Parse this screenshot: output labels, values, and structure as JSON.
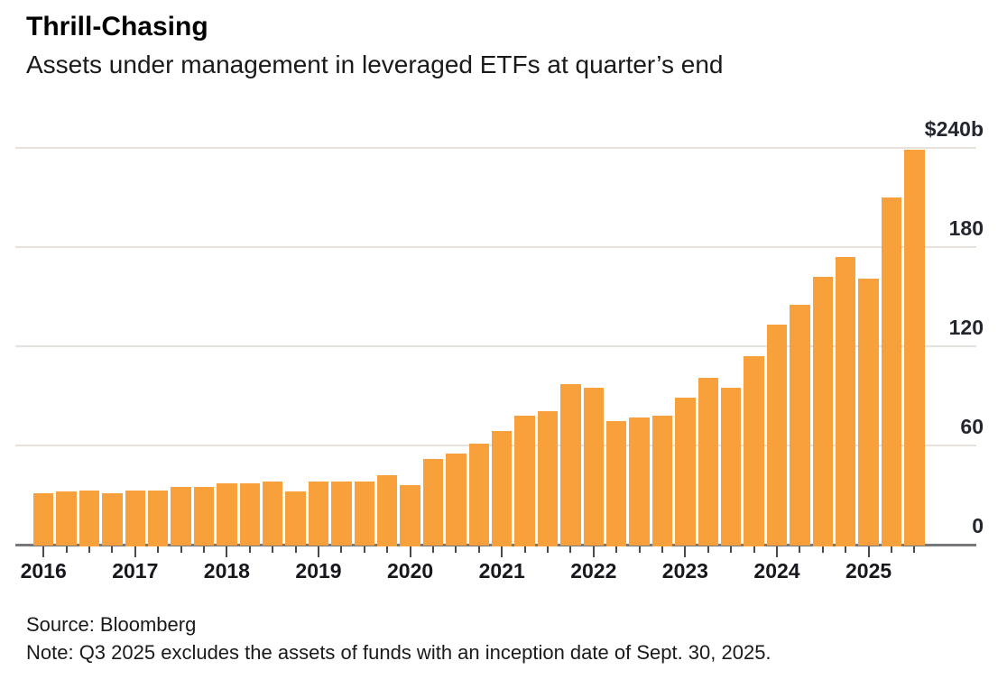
{
  "header": {
    "title": "Thrill-Chasing",
    "subtitle": "Assets under management in leveraged ETFs at quarter’s end"
  },
  "footer": {
    "source": "Source: Bloomberg",
    "note": "Note: Q3 2025 excludes the assets of funds with an inception date of Sept. 30, 2025."
  },
  "colors": {
    "bar": "#F8A13C",
    "gridline": "#E8E2DD",
    "axis_line": "#77787B",
    "tick": "#4A4A4C",
    "axis_label": "#23262E",
    "text": "#1A1A1A"
  },
  "chart_data": {
    "type": "bar",
    "title": "Thrill-Chasing",
    "subtitle": "Assets under management in leveraged ETFs at quarter’s end",
    "unit": "billions of US dollars",
    "ylim": [
      0,
      240
    ],
    "grid": "horizontal",
    "legend": "none",
    "y_ticks": [
      {
        "value": 240,
        "label": "$240b"
      },
      {
        "value": 180,
        "label": "180"
      },
      {
        "value": 120,
        "label": "120"
      },
      {
        "value": 60,
        "label": "60"
      },
      {
        "value": 0,
        "label": "0"
      }
    ],
    "x_years": [
      "2016",
      "2017",
      "2018",
      "2019",
      "2020",
      "2021",
      "2022",
      "2023",
      "2024",
      "2025"
    ],
    "categories": [
      "Q1 2016",
      "Q2 2016",
      "Q3 2016",
      "Q4 2016",
      "Q1 2017",
      "Q2 2017",
      "Q3 2017",
      "Q4 2017",
      "Q1 2018",
      "Q2 2018",
      "Q3 2018",
      "Q4 2018",
      "Q1 2019",
      "Q2 2019",
      "Q3 2019",
      "Q4 2019",
      "Q1 2020",
      "Q2 2020",
      "Q3 2020",
      "Q4 2020",
      "Q1 2021",
      "Q2 2021",
      "Q3 2021",
      "Q4 2021",
      "Q1 2022",
      "Q2 2022",
      "Q3 2022",
      "Q4 2022",
      "Q1 2023",
      "Q2 2023",
      "Q3 2023",
      "Q4 2023",
      "Q1 2024",
      "Q2 2024",
      "Q3 2024",
      "Q4 2024",
      "Q1 2025",
      "Q2 2025",
      "Q3 2025"
    ],
    "values": [
      31,
      32,
      33,
      31,
      33,
      33,
      35,
      35,
      37,
      37,
      38,
      32,
      38,
      38,
      38,
      42,
      36,
      52,
      55,
      61,
      69,
      78,
      81,
      97,
      95,
      75,
      77,
      78,
      89,
      101,
      95,
      114,
      133,
      145,
      162,
      174,
      161,
      210,
      239
    ]
  }
}
